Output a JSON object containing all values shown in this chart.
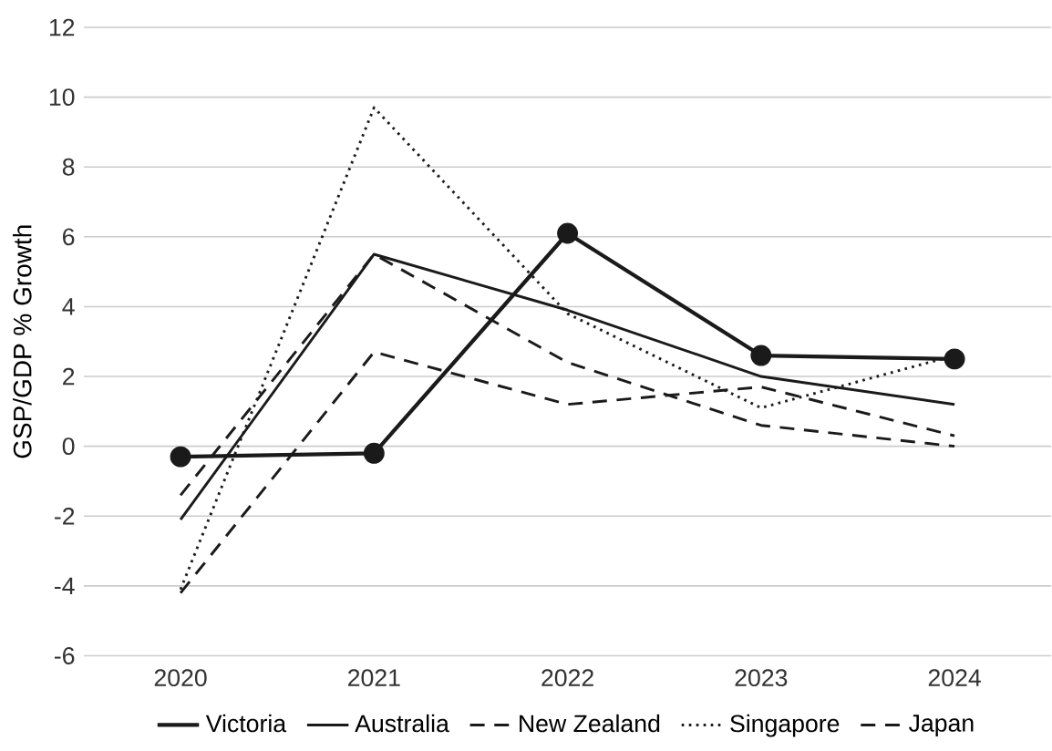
{
  "chart_data": {
    "type": "line",
    "ylabel": "GSP/GDP % Growth",
    "categories": [
      "2020",
      "2021",
      "2022",
      "2023",
      "2024"
    ],
    "series": [
      {
        "name": "Victoria",
        "color": "#1a1a1a",
        "values": [
          -0.3,
          -0.2,
          6.1,
          2.6,
          2.5
        ],
        "marker": "circle",
        "line_style": "solid"
      },
      {
        "name": "Australia",
        "color": "#1a1a1a",
        "values": [
          -2.1,
          5.5,
          3.9,
          2.0,
          1.2
        ],
        "line_style": "solid"
      },
      {
        "name": "New Zealand",
        "color": "#1a1a1a",
        "values": [
          -1.4,
          5.5,
          2.4,
          0.6,
          0.0
        ],
        "line_style": "dashed"
      },
      {
        "name": "Singapore",
        "color": "#1a1a1a",
        "values": [
          -4.1,
          9.7,
          3.8,
          1.1,
          2.6
        ],
        "line_style": "dotted"
      },
      {
        "name": "Japan",
        "color": "#1a1a1a",
        "values": [
          -4.2,
          2.7,
          1.2,
          1.7,
          0.3
        ],
        "line_style": "dashed"
      }
    ],
    "ylim": [
      -6,
      12
    ],
    "yticks": [
      -6,
      -4,
      -2,
      0,
      2,
      4,
      6,
      8,
      10,
      12
    ],
    "grid": "y",
    "legend": "bottom"
  }
}
